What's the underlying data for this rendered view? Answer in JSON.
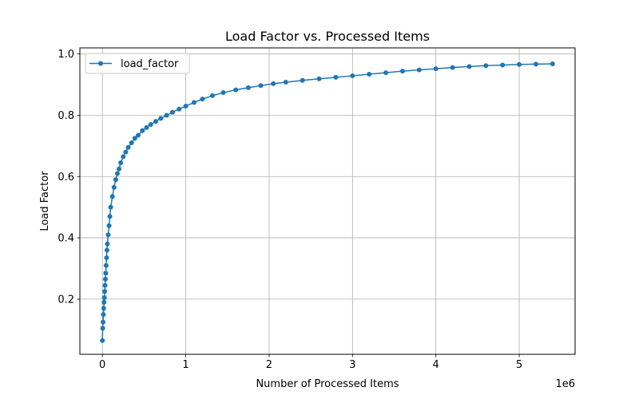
{
  "chart_data": {
    "type": "line",
    "title": "Load Factor vs. Processed Items",
    "xlabel": "Number of Processed Items",
    "ylabel": "Load Factor",
    "x_offset_label": "1e6",
    "xlim": [
      -0.27,
      5.67
    ],
    "ylim": [
      0.02,
      1.02
    ],
    "x_ticks": [
      0,
      1,
      2,
      3,
      4,
      5
    ],
    "x_tick_labels": [
      "0",
      "1",
      "2",
      "3",
      "4",
      "5"
    ],
    "y_ticks": [
      0.2,
      0.4,
      0.6,
      0.8,
      1.0
    ],
    "y_tick_labels": [
      "0.2",
      "0.4",
      "0.6",
      "0.8",
      "1.0"
    ],
    "grid": true,
    "legend_position": "upper-left",
    "series": [
      {
        "name": "load_factor",
        "color": "#1f77b4",
        "marker": "circle",
        "x": [
          0.0,
          0.004,
          0.008,
          0.012,
          0.016,
          0.02,
          0.024,
          0.028,
          0.032,
          0.036,
          0.04,
          0.045,
          0.05,
          0.055,
          0.06,
          0.07,
          0.08,
          0.09,
          0.1,
          0.12,
          0.14,
          0.16,
          0.18,
          0.2,
          0.22,
          0.25,
          0.28,
          0.31,
          0.35,
          0.39,
          0.43,
          0.48,
          0.53,
          0.58,
          0.64,
          0.7,
          0.77,
          0.84,
          0.92,
          1.0,
          1.1,
          1.2,
          1.32,
          1.45,
          1.6,
          1.75,
          1.9,
          2.05,
          2.2,
          2.4,
          2.6,
          2.8,
          3.0,
          3.2,
          3.4,
          3.6,
          3.8,
          4.0,
          4.2,
          4.4,
          4.6,
          4.8,
          5.0,
          5.2,
          5.4
        ],
        "y": [
          0.065,
          0.105,
          0.125,
          0.15,
          0.17,
          0.19,
          0.205,
          0.225,
          0.245,
          0.265,
          0.285,
          0.31,
          0.335,
          0.36,
          0.38,
          0.41,
          0.44,
          0.47,
          0.5,
          0.535,
          0.565,
          0.59,
          0.61,
          0.625,
          0.645,
          0.665,
          0.68,
          0.695,
          0.71,
          0.725,
          0.735,
          0.75,
          0.76,
          0.77,
          0.78,
          0.79,
          0.8,
          0.81,
          0.82,
          0.83,
          0.842,
          0.853,
          0.864,
          0.874,
          0.883,
          0.89,
          0.897,
          0.903,
          0.908,
          0.914,
          0.919,
          0.924,
          0.929,
          0.934,
          0.939,
          0.944,
          0.948,
          0.952,
          0.956,
          0.959,
          0.962,
          0.964,
          0.966,
          0.967,
          0.968
        ]
      }
    ]
  }
}
